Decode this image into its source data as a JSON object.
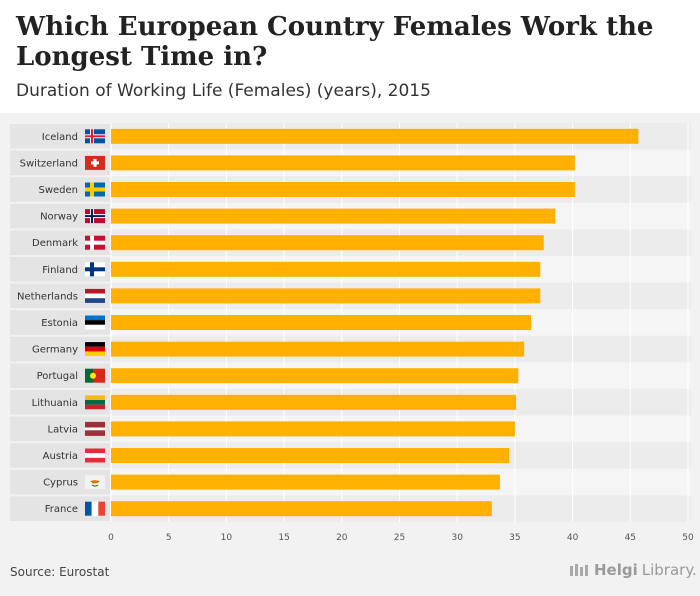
{
  "chart_data": {
    "type": "bar",
    "orientation": "horizontal",
    "title": "Which European Country Females Work the Longest Time in?",
    "subtitle": "Duration of Working Life (Females) (years), 2015",
    "categories": [
      "Iceland",
      "Switzerland",
      "Sweden",
      "Norway",
      "Denmark",
      "Finland",
      "Netherlands",
      "Estonia",
      "Germany",
      "Portugal",
      "Lithuania",
      "Latvia",
      "Austria",
      "Cyprus",
      "France"
    ],
    "values": [
      45.7,
      40.2,
      40.2,
      38.5,
      37.5,
      37.2,
      37.2,
      36.4,
      35.8,
      35.3,
      35.1,
      35.0,
      34.5,
      33.7,
      33.0
    ],
    "xlim": [
      0,
      50
    ],
    "xticks": [
      0,
      5,
      10,
      15,
      20,
      25,
      30,
      35,
      40,
      45,
      50
    ],
    "xlabel": "",
    "ylabel": "",
    "bar_color": "#ffb000"
  },
  "flags": [
    "iceland-flag-icon",
    "switzerland-flag-icon",
    "sweden-flag-icon",
    "norway-flag-icon",
    "denmark-flag-icon",
    "finland-flag-icon",
    "netherlands-flag-icon",
    "estonia-flag-icon",
    "germany-flag-icon",
    "portugal-flag-icon",
    "lithuania-flag-icon",
    "latvia-flag-icon",
    "austria-flag-icon",
    "cyprus-flag-icon",
    "france-flag-icon"
  ],
  "source": "Source: Eurostat",
  "logo": {
    "part1": "Helgi",
    "part2": "Library."
  }
}
